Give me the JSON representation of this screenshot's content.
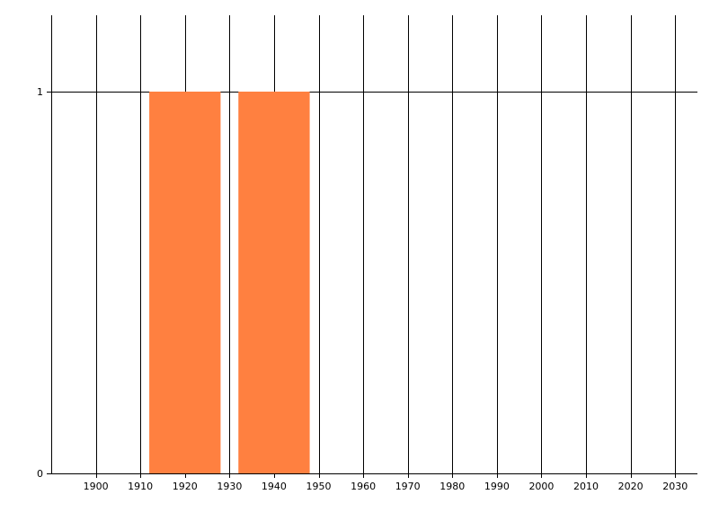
{
  "chart_data": {
    "type": "bar",
    "title": "",
    "xlabel": "",
    "ylabel": "",
    "xlim": [
      1890,
      2035
    ],
    "ylim": [
      0,
      1.2
    ],
    "x_ticks": [
      1900,
      1910,
      1920,
      1930,
      1940,
      1950,
      1960,
      1970,
      1980,
      1990,
      2000,
      2010,
      2020,
      2030
    ],
    "y_ticks": [
      0,
      1
    ],
    "grid": true,
    "bars": [
      {
        "x_start": 1912,
        "x_end": 1928,
        "value": 1
      },
      {
        "x_start": 1932,
        "x_end": 1948,
        "value": 1
      }
    ],
    "colors": {
      "bar": "#FF8040",
      "grid": "#000000",
      "tick_label": "#000000"
    }
  }
}
